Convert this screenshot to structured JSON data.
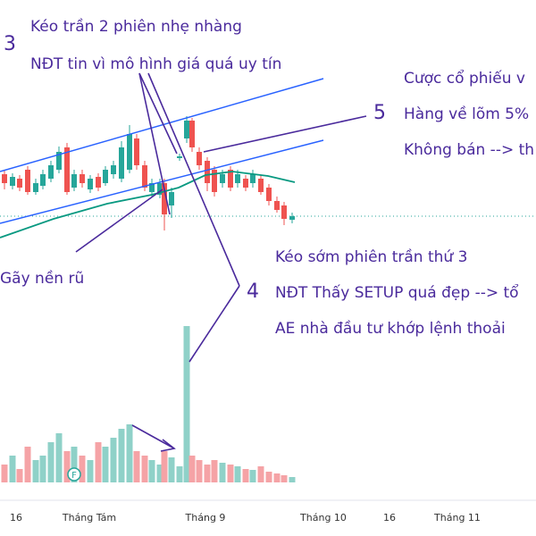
{
  "annotations": {
    "step3_number": "3",
    "step3_line1": "Kéo trần 2 phiên nhẹ nhàng",
    "step3_line2": "NĐT tin vì mô hình giá quá uy tín",
    "step5_number": "5",
    "step5_line1": "Cược cổ phiếu v",
    "step5_line2": "Hàng về lõm 5%",
    "step5_line3": "Không bán --> th",
    "step4_number": "4",
    "step4_line1": "Kéo sớm phiên trần thứ 3",
    "step4_line2": "NĐT Thấy SETUP quá đẹp --> tổ",
    "step4_line3": "AE nhà đầu tư khớp lệnh thoải",
    "breakdown": "Gãy nền rũ",
    "marker": "F"
  },
  "x_axis_labels": [
    "16",
    "Tháng Tám",
    "Tháng 9",
    "Tháng 10",
    "16",
    "Tháng 11"
  ]
}
